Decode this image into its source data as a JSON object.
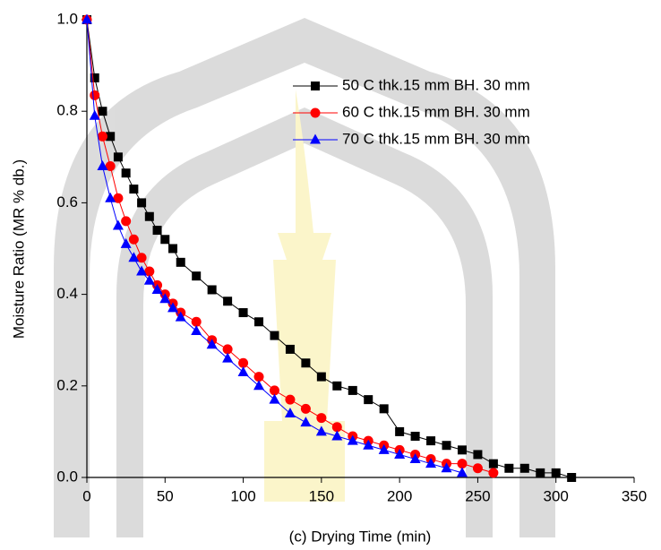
{
  "chart_data": {
    "type": "line",
    "xlabel": "(c)  Drying Time (min)",
    "ylabel": "Moisture Ratio (MR % db.)",
    "xlim": [
      0,
      350
    ],
    "xticks": [
      0,
      50,
      100,
      150,
      200,
      250,
      300,
      350
    ],
    "ylim": [
      0,
      1
    ],
    "yticks": [
      {
        "value": 0,
        "label": "0.0"
      },
      0.2,
      0.4,
      0.6,
      0.8,
      {
        "value": 1,
        "label": "1.0"
      }
    ],
    "legend": "upper right",
    "series": [
      {
        "name": "50 C thk.15 mm BH. 30 mm",
        "color": "#000000",
        "marker": "square",
        "x": [
          0,
          5,
          10,
          15,
          20,
          25,
          30,
          35,
          40,
          45,
          50,
          55,
          60,
          70,
          80,
          90,
          100,
          110,
          120,
          130,
          140,
          150,
          160,
          170,
          180,
          190,
          200,
          210,
          220,
          230,
          240,
          250,
          260,
          270,
          280,
          290,
          300,
          310
        ],
        "values": [
          1.0,
          0.873,
          0.8,
          0.745,
          0.7,
          0.665,
          0.63,
          0.6,
          0.57,
          0.54,
          0.52,
          0.5,
          0.47,
          0.44,
          0.41,
          0.385,
          0.36,
          0.34,
          0.31,
          0.28,
          0.25,
          0.22,
          0.2,
          0.19,
          0.17,
          0.15,
          0.1,
          0.09,
          0.08,
          0.07,
          0.06,
          0.05,
          0.03,
          0.02,
          0.02,
          0.01,
          0.01,
          0.0
        ]
      },
      {
        "name": "60 C thk.15 mm BH. 30 mm",
        "color": "#ff0000",
        "marker": "circle",
        "x": [
          0,
          5,
          10,
          15,
          20,
          25,
          30,
          35,
          40,
          45,
          50,
          55,
          60,
          70,
          80,
          90,
          100,
          110,
          120,
          130,
          140,
          150,
          160,
          170,
          180,
          190,
          200,
          210,
          220,
          230,
          240,
          250,
          260
        ],
        "values": [
          1.0,
          0.835,
          0.745,
          0.68,
          0.61,
          0.56,
          0.52,
          0.48,
          0.45,
          0.42,
          0.4,
          0.38,
          0.36,
          0.34,
          0.3,
          0.28,
          0.25,
          0.22,
          0.19,
          0.17,
          0.15,
          0.13,
          0.11,
          0.09,
          0.08,
          0.07,
          0.06,
          0.05,
          0.04,
          0.03,
          0.03,
          0.02,
          0.01
        ]
      },
      {
        "name": "70 C thk.15 mm BH. 30 mm",
        "color": "#0000ff",
        "marker": "triangle",
        "x": [
          0,
          5,
          10,
          15,
          20,
          25,
          30,
          35,
          40,
          45,
          50,
          55,
          60,
          70,
          80,
          90,
          100,
          110,
          120,
          130,
          140,
          150,
          160,
          170,
          180,
          190,
          200,
          210,
          220,
          230,
          240
        ],
        "values": [
          1.0,
          0.79,
          0.68,
          0.61,
          0.55,
          0.51,
          0.48,
          0.45,
          0.43,
          0.41,
          0.39,
          0.37,
          0.35,
          0.32,
          0.29,
          0.26,
          0.23,
          0.2,
          0.17,
          0.14,
          0.12,
          0.1,
          0.09,
          0.08,
          0.07,
          0.06,
          0.05,
          0.04,
          0.03,
          0.02,
          0.01
        ]
      }
    ]
  }
}
